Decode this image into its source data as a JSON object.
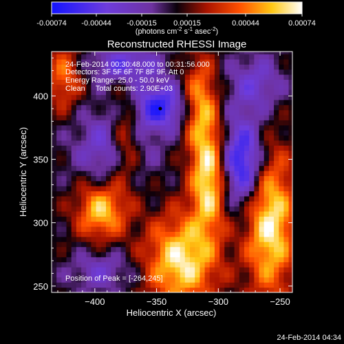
{
  "colorbar": {
    "ticks": [
      "-0.00074",
      "-0.00044",
      "-0.00015",
      "0.00015",
      "0.00044",
      "0.00074"
    ],
    "units": "(photons cm",
    "units_exp1": "-2",
    "units_mid": " s",
    "units_exp2": "-1",
    "units_end": " asec",
    "units_exp3": "-2",
    "units_close": ")",
    "range": [
      -0.00074,
      0.00074
    ]
  },
  "title": "Reconstructed RHESSI Image",
  "info": {
    "time_range": "24-Feb-2014 00:30:48.000 to 00:31:56.000",
    "detectors": "Detectors: 3F 5F 6F 7F 8F 9F, Att 0",
    "energy": "Energy Range: 25.0 - 50.0 keV",
    "clean": "Clean     Total counts: 2.90E+03",
    "peak": "Position of Peak = [-264,245]"
  },
  "footer_timestamp": "24-Feb-2014 04:34",
  "chart_data": {
    "type": "heatmap",
    "title": "Reconstructed RHESSI Image",
    "xlabel": "Heliocentric X (arcsec)",
    "ylabel": "Heliocentric Y (arcsec)",
    "xlim": [
      -435,
      -240
    ],
    "ylim": [
      245,
      435
    ],
    "x_ticks": [
      -400,
      -350,
      -300,
      -250
    ],
    "y_ticks": [
      250,
      300,
      350,
      400
    ],
    "peak": [
      -264,
      245
    ],
    "marker": [
      -347,
      390
    ],
    "blobs": [
      {
        "x": -347,
        "y": 392,
        "sx": 16,
        "sy": 13,
        "amp": -0.0006
      },
      {
        "x": -280,
        "y": 348,
        "sx": 12,
        "sy": 24,
        "amp": -0.0007
      },
      {
        "x": -385,
        "y": 360,
        "sx": 22,
        "sy": 22,
        "amp": -0.0004
      },
      {
        "x": -375,
        "y": 425,
        "sx": 20,
        "sy": 10,
        "amp": -0.00045
      },
      {
        "x": -395,
        "y": 262,
        "sx": 18,
        "sy": 12,
        "amp": -0.0003
      },
      {
        "x": -270,
        "y": 410,
        "sx": 16,
        "sy": 16,
        "amp": -0.00035
      },
      {
        "x": -308,
        "y": 335,
        "sx": 10,
        "sy": 30,
        "amp": 0.00068
      },
      {
        "x": -315,
        "y": 395,
        "sx": 10,
        "sy": 25,
        "amp": 0.0005
      },
      {
        "x": -330,
        "y": 270,
        "sx": 20,
        "sy": 25,
        "amp": 0.00068
      },
      {
        "x": -258,
        "y": 300,
        "sx": 14,
        "sy": 40,
        "amp": 0.0007
      },
      {
        "x": -395,
        "y": 310,
        "sx": 14,
        "sy": 16,
        "amp": 0.0006
      },
      {
        "x": -375,
        "y": 365,
        "sx": 9,
        "sy": 25,
        "amp": 0.0005
      },
      {
        "x": -425,
        "y": 415,
        "sx": 10,
        "sy": 18,
        "amp": 0.0004
      }
    ]
  }
}
